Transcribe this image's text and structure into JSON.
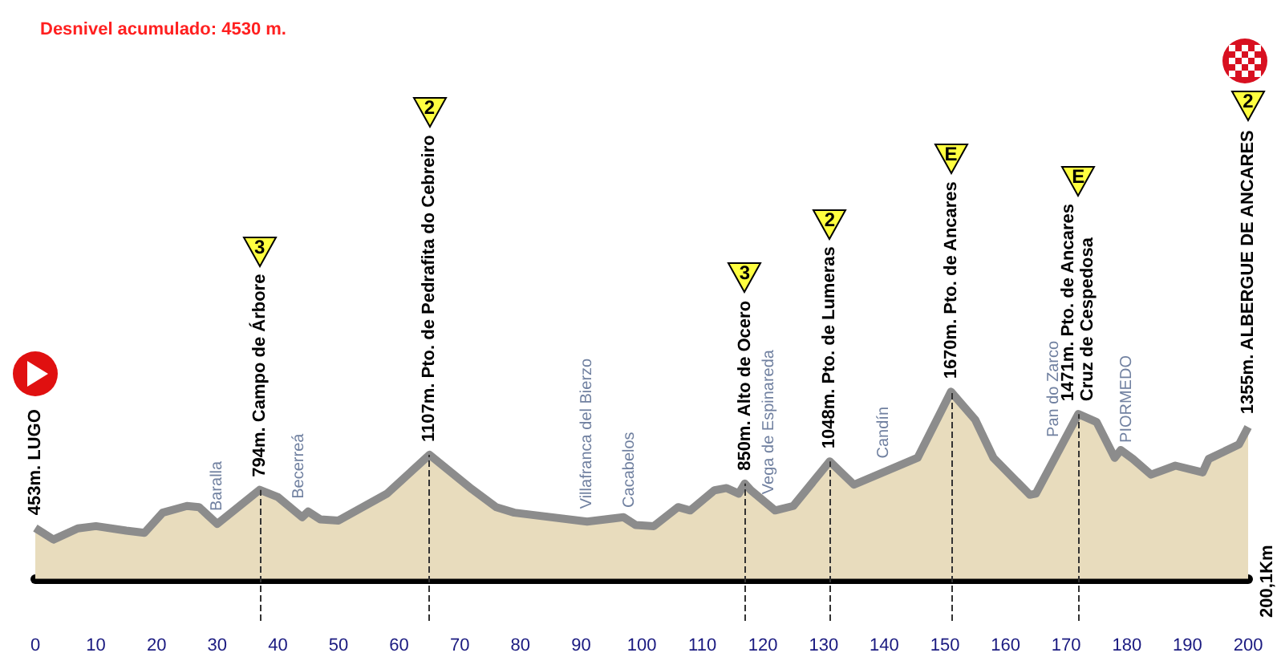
{
  "chart_data": {
    "type": "area",
    "title": "Desnivel acumulado: 4530 m.",
    "tick_labels": "x",
    "marker": "none",
    "grid": false,
    "xlim": [
      0,
      200
    ],
    "xticks": [
      0,
      10,
      20,
      30,
      40,
      50,
      60,
      70,
      80,
      90,
      100,
      110,
      120,
      130,
      140,
      150,
      160,
      170,
      180,
      190,
      200
    ],
    "series": [
      {
        "color": "#e8dcbd",
        "x": [
          0,
          3,
          7,
          10,
          15,
          18,
          21,
          25,
          27,
          30,
          37,
          40,
          44,
          45,
          47,
          50,
          58,
          65,
          72,
          76,
          79,
          91,
          97,
          99,
          102,
          106,
          108,
          112,
          114,
          116,
          117,
          118,
          122,
          125,
          131,
          135,
          145.5,
          151,
          155,
          158,
          164,
          165,
          172,
          175,
          178,
          179,
          181,
          184,
          188,
          192.5,
          193.5,
          198.5,
          200
        ],
        "values": [
          453,
          350,
          450,
          470,
          430,
          410,
          590,
          650,
          640,
          490,
          794,
          730,
          550,
          600,
          530,
          520,
          760,
          1107,
          800,
          640,
          590,
          510,
          550,
          480,
          470,
          640,
          610,
          790,
          810,
          760,
          850,
          790,
          610,
          650,
          1048,
          840,
          1080,
          1670,
          1420,
          1080,
          750,
          760,
          1471,
          1400,
          1080,
          1150,
          1070,
          930,
          1010,
          950,
          1070,
          1200,
          1355
        ],
        "value_labels": [
          "453m. LUGO",
          null,
          null,
          null,
          null,
          null,
          null,
          null,
          null,
          null,
          "794m. Campo de Árbore",
          null,
          null,
          null,
          null,
          null,
          null,
          "1107m. Pto. de Pedrafita do Cebreiro",
          null,
          null,
          null,
          null,
          null,
          null,
          null,
          null,
          null,
          null,
          null,
          null,
          "850m. Alto de Ocero",
          null,
          null,
          null,
          "1048m. Pto. de Lumeras",
          null,
          null,
          "1670m. Pto. de Ancares",
          null,
          null,
          null,
          null,
          "1471m. Pto. de Ancares\nCruz de Cespedosa",
          null,
          null,
          null,
          null,
          null,
          null,
          null,
          null,
          null,
          "1355m. ALBERGUE DE ANCARES"
        ]
      }
    ],
    "ref_lines": [
      {
        "axis": "x",
        "value": 37,
        "line_style": "dashed",
        "color": "#333333"
      },
      {
        "axis": "x",
        "value": 65,
        "line_style": "dashed",
        "color": "#333333"
      },
      {
        "axis": "x",
        "value": 117,
        "line_style": "dashed",
        "color": "#333333"
      },
      {
        "axis": "x",
        "value": 131,
        "line_style": "dashed",
        "color": "#333333"
      },
      {
        "axis": "x",
        "value": 151,
        "line_style": "dashed",
        "color": "#333333"
      },
      {
        "axis": "x",
        "value": 172,
        "line_style": "dashed",
        "color": "#333333"
      }
    ],
    "annotations": [
      "200,1Km",
      {
        "text": "Baralla",
        "x": 30,
        "y": 490
      },
      {
        "text": "Becerreá",
        "x": 43.5,
        "y": 600
      },
      {
        "text": "Villafranca del Bierzo",
        "x": 91,
        "y": 510
      },
      {
        "text": "Cacabelos",
        "x": 98,
        "y": 520
      },
      {
        "text": "Vega de Espinareda",
        "x": 121,
        "y": 640
      },
      {
        "text": "Candín",
        "x": 140,
        "y": 960
      },
      {
        "text": "Pan do Zarco",
        "x": 168,
        "y": 1150
      },
      {
        "text": "PIORMEDO",
        "x": 180,
        "y": 1100
      },
      "3",
      "2",
      "3",
      "2",
      "E",
      "E",
      "2"
    ]
  }
}
